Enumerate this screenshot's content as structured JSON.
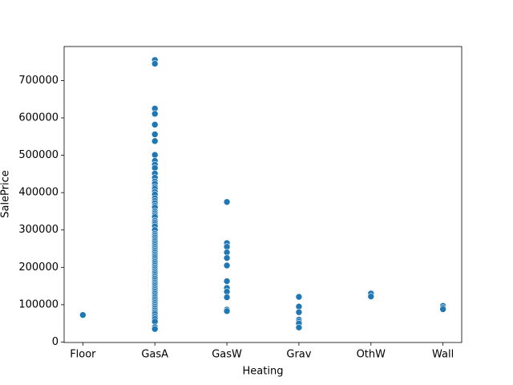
{
  "chart_data": {
    "type": "scatter",
    "x_label": "Heating",
    "y_label": "SalePrice",
    "categories": [
      "Floor",
      "GasA",
      "GasW",
      "Grav",
      "OthW",
      "Wall"
    ],
    "values": [
      [
        72500
      ],
      [
        755000,
        745000,
        625000,
        611000,
        582000,
        556000,
        538000,
        501000,
        485000,
        475000,
        466000,
        451000,
        440000,
        430000,
        424000,
        415000,
        410000,
        402000,
        395000,
        385000,
        378000,
        372000,
        365000,
        360000,
        350000,
        345000,
        340000,
        335000,
        325000,
        320000,
        315000,
        310000,
        300000,
        290000,
        285000,
        280000,
        275000,
        270000,
        265000,
        260000,
        255000,
        250000,
        245000,
        240000,
        235000,
        230000,
        225000,
        220000,
        215000,
        210000,
        205000,
        200000,
        195000,
        190000,
        185000,
        180000,
        175000,
        170000,
        165000,
        160000,
        155000,
        150000,
        145000,
        140000,
        135000,
        130000,
        125000,
        120000,
        115000,
        110000,
        105000,
        100000,
        95000,
        90000,
        85000,
        80000,
        75000,
        68000,
        62000,
        55000,
        40000,
        35000
      ],
      [
        375000,
        265000,
        255000,
        240000,
        225000,
        205000,
        163000,
        145000,
        135000,
        120000,
        87000,
        83000
      ],
      [
        121000,
        95000,
        80000,
        60000,
        55000,
        50000,
        39000
      ],
      [
        130000,
        122000
      ],
      [
        97000,
        92000,
        88000
      ]
    ],
    "color": "#1f77b4",
    "ylim": [
      -1100,
      791000
    ],
    "yticks": [
      0,
      100000,
      200000,
      300000,
      400000,
      500000,
      600000,
      700000
    ],
    "grid": false
  }
}
